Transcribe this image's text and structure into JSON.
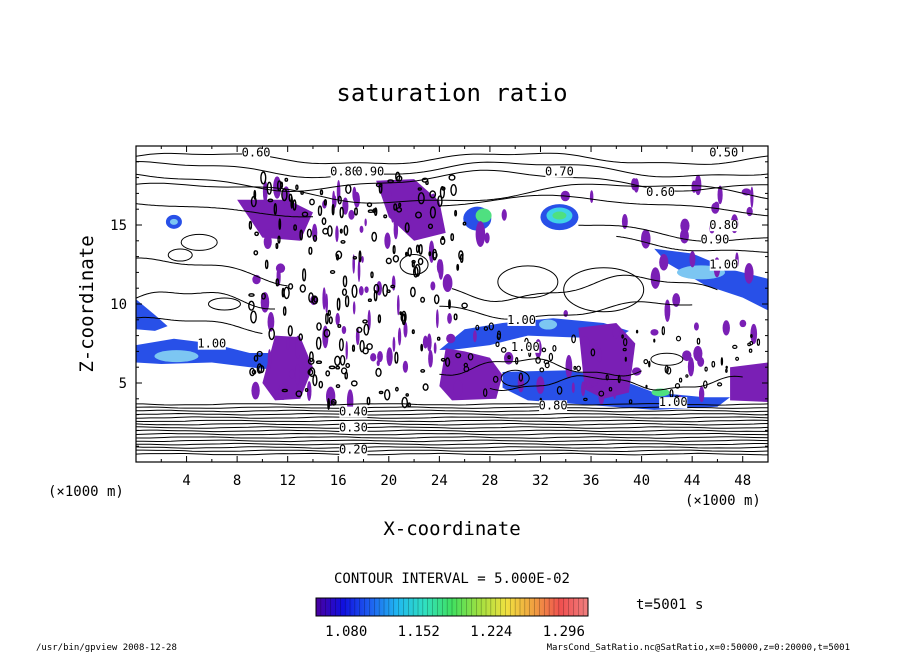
{
  "chart_data": {
    "type": "contour",
    "title": "saturation ratio",
    "xlabel": "X-coordinate",
    "ylabel": "Z-coordinate",
    "x_units": "(×1000 m)",
    "z_units": "(×1000 m)",
    "xlim": [
      0,
      50
    ],
    "zlim": [
      0,
      20
    ],
    "x_ticks": [
      "4",
      "8",
      "12",
      "16",
      "20",
      "24",
      "28",
      "32",
      "36",
      "40",
      "44",
      "48"
    ],
    "z_ticks": [
      "5",
      "10",
      "15"
    ],
    "contour_interval_text": "CONTOUR INTERVAL = 5.000E-02",
    "colorbar_ticks": [
      "1.080",
      "1.152",
      "1.224",
      "1.296"
    ],
    "colorbar_range": [
      1.05,
      1.32
    ],
    "time_label": "t=5001 s",
    "footer_left": "/usr/bin/gpview   2008-12-28",
    "footer_right": "MarsCond_SatRatio.nc@SatRatio,x=0:50000,z=0:20000,t=5001",
    "contour_labels": [
      {
        "text": "0.60",
        "x": 9.5,
        "z": 19.4
      },
      {
        "text": "0.50",
        "x": 46.5,
        "z": 19.4
      },
      {
        "text": "0.80",
        "x": 16.5,
        "z": 18.2
      },
      {
        "text": "0.90",
        "x": 18.5,
        "z": 18.2
      },
      {
        "text": "0.70",
        "x": 33.5,
        "z": 18.2
      },
      {
        "text": "0.60",
        "x": 41.5,
        "z": 16.9
      },
      {
        "text": "0.80",
        "x": 46.5,
        "z": 14.8
      },
      {
        "text": "0.90",
        "x": 45.8,
        "z": 13.9
      },
      {
        "text": "1.00",
        "x": 46.5,
        "z": 12.3
      },
      {
        "text": "1.00",
        "x": 30.5,
        "z": 8.8
      },
      {
        "text": "1.00",
        "x": 6.0,
        "z": 7.3
      },
      {
        "text": "1.00",
        "x": 30.8,
        "z": 7.1
      },
      {
        "text": "1.00",
        "x": 42.5,
        "z": 3.6
      },
      {
        "text": "0.80",
        "x": 33.0,
        "z": 3.4
      },
      {
        "text": "0.40",
        "x": 17.2,
        "z": 3.0
      },
      {
        "text": "0.30",
        "x": 17.2,
        "z": 2.0
      },
      {
        "text": "0.20",
        "x": 17.2,
        "z": 0.6
      }
    ],
    "colors": {
      "purple": "#7a1fb5",
      "blue": "#2850e8",
      "cyan": "#3fd2e8",
      "green": "#4fe080",
      "light_blue": "#7cc6f2",
      "colorbar": [
        "#4a00a0",
        "#1010e0",
        "#1e60f0",
        "#20b8f0",
        "#30e0c0",
        "#40e060",
        "#a0e040",
        "#f0e040",
        "#f0a040",
        "#f05050",
        "#f08080"
      ]
    }
  }
}
